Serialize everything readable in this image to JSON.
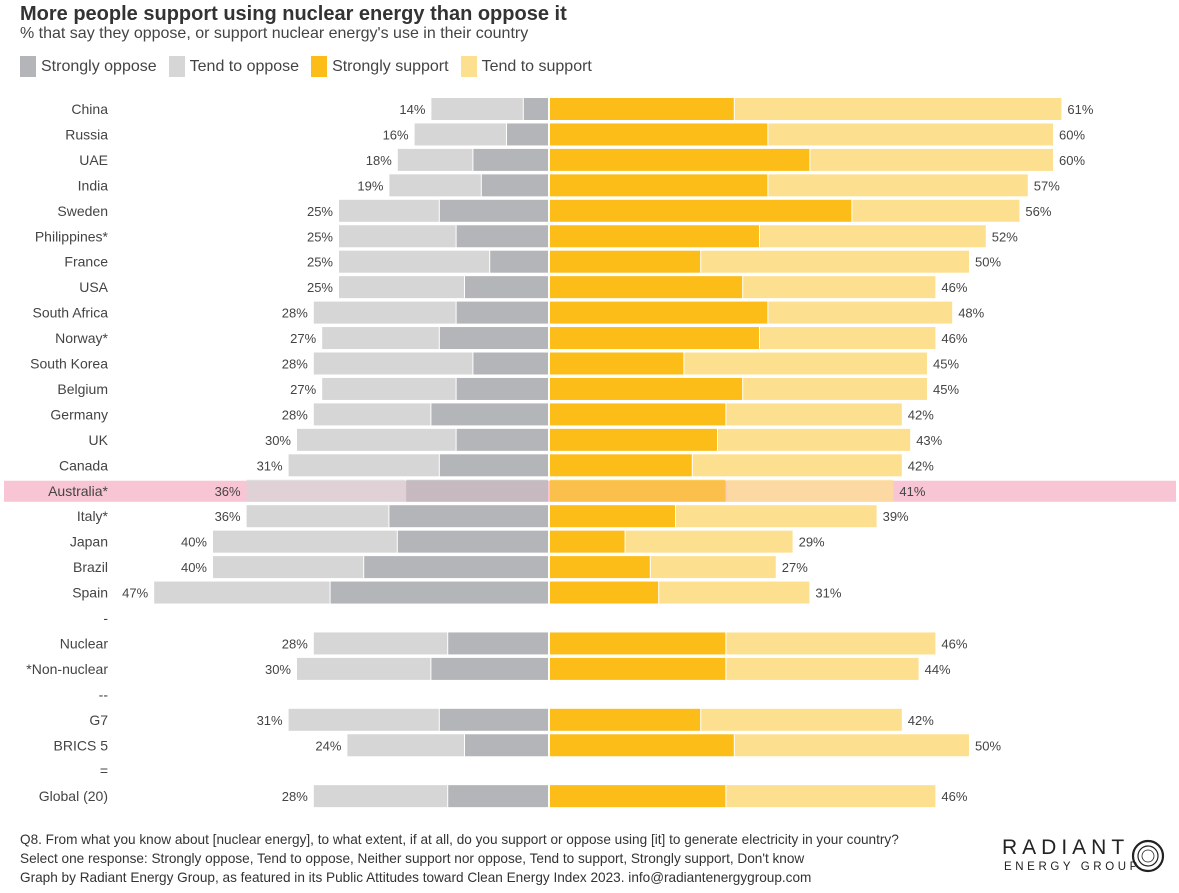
{
  "chart_data": {
    "type": "bar",
    "subtype": "diverging-stacked-horizontal",
    "title": "More people support using nuclear energy than oppose it",
    "subtitle": "% that say they oppose, or support nuclear energy's use in their country",
    "legend": [
      {
        "key": "strongly_oppose",
        "label": "Strongly oppose",
        "color": "#b3b5b8"
      },
      {
        "key": "tend_to_oppose",
        "label": "Tend to oppose",
        "color": "#d6d6d6"
      },
      {
        "key": "strongly_support",
        "label": "Strongly support",
        "color": "#fcbd18"
      },
      {
        "key": "tend_to_support",
        "label": "Tend to support",
        "color": "#fde08f"
      }
    ],
    "categories": [
      "China",
      "Russia",
      "UAE",
      "India",
      "Sweden",
      "Philippines*",
      "France",
      "USA",
      "South Africa",
      "Norway*",
      "South Korea",
      "Belgium",
      "Germany",
      "UK",
      "Canada",
      "Australia*",
      "Italy*",
      "Japan",
      "Brazil",
      "Spain",
      "-",
      "Nuclear",
      "*Non-nuclear",
      "--",
      "G7",
      "BRICS 5",
      "=",
      "Global (20)"
    ],
    "highlight": "Australia*",
    "highlight_color": "#f7c5d3",
    "series": [
      {
        "name": "Strongly oppose",
        "values": [
          3,
          5,
          9,
          8,
          13,
          11,
          7,
          10,
          11,
          13,
          9,
          11,
          14,
          11,
          13,
          17,
          19,
          18,
          22,
          26,
          null,
          12,
          14,
          null,
          13,
          10,
          null,
          12
        ]
      },
      {
        "name": "Tend to oppose",
        "values": [
          11,
          11,
          9,
          11,
          12,
          14,
          18,
          15,
          17,
          14,
          19,
          16,
          14,
          19,
          18,
          19,
          17,
          22,
          18,
          21,
          null,
          16,
          16,
          null,
          18,
          14,
          null,
          16
        ]
      },
      {
        "name": "Strongly support",
        "values": [
          22,
          26,
          31,
          26,
          36,
          25,
          18,
          23,
          26,
          25,
          16,
          23,
          21,
          20,
          17,
          21,
          15,
          9,
          12,
          13,
          null,
          21,
          21,
          null,
          18,
          22,
          null,
          21
        ]
      },
      {
        "name": "Tend to support",
        "values": [
          39,
          34,
          29,
          31,
          20,
          27,
          32,
          23,
          22,
          21,
          29,
          22,
          21,
          23,
          25,
          20,
          24,
          20,
          15,
          18,
          null,
          25,
          23,
          null,
          24,
          28,
          null,
          25
        ]
      }
    ],
    "oppose_labels": [
      "14%",
      "16%",
      "18%",
      "19%",
      "25%",
      "25%",
      "25%",
      "25%",
      "28%",
      "27%",
      "28%",
      "27%",
      "28%",
      "30%",
      "31%",
      "36%",
      "36%",
      "40%",
      "40%",
      "47%",
      "",
      "28%",
      "30%",
      "",
      "31%",
      "24%",
      "",
      "28%"
    ],
    "support_labels": [
      "61%",
      "60%",
      "60%",
      "57%",
      "56%",
      "52%",
      "50%",
      "46%",
      "48%",
      "46%",
      "45%",
      "45%",
      "42%",
      "43%",
      "42%",
      "41%",
      "39%",
      "29%",
      "27%",
      "31%",
      "",
      "46%",
      "44%",
      "",
      "42%",
      "50%",
      "",
      "46%"
    ],
    "xlim": [
      -50,
      65
    ]
  },
  "footnote": {
    "line1": "Q8. From what you know about [nuclear energy], to what extent, if at all, do you support or oppose using [it] to generate electricity in your country?",
    "line2": "Select one response: Strongly oppose, Tend to oppose, Neither support nor oppose, Tend to support, Strongly support, Don't know",
    "line3": "Graph by Radiant Energy Group, as featured in its Public Attitudes toward Clean Energy Index 2023. info@radiantenergygroup.com"
  },
  "logo": {
    "line1": "RADIANT",
    "line2": "ENERGY GROUP"
  }
}
